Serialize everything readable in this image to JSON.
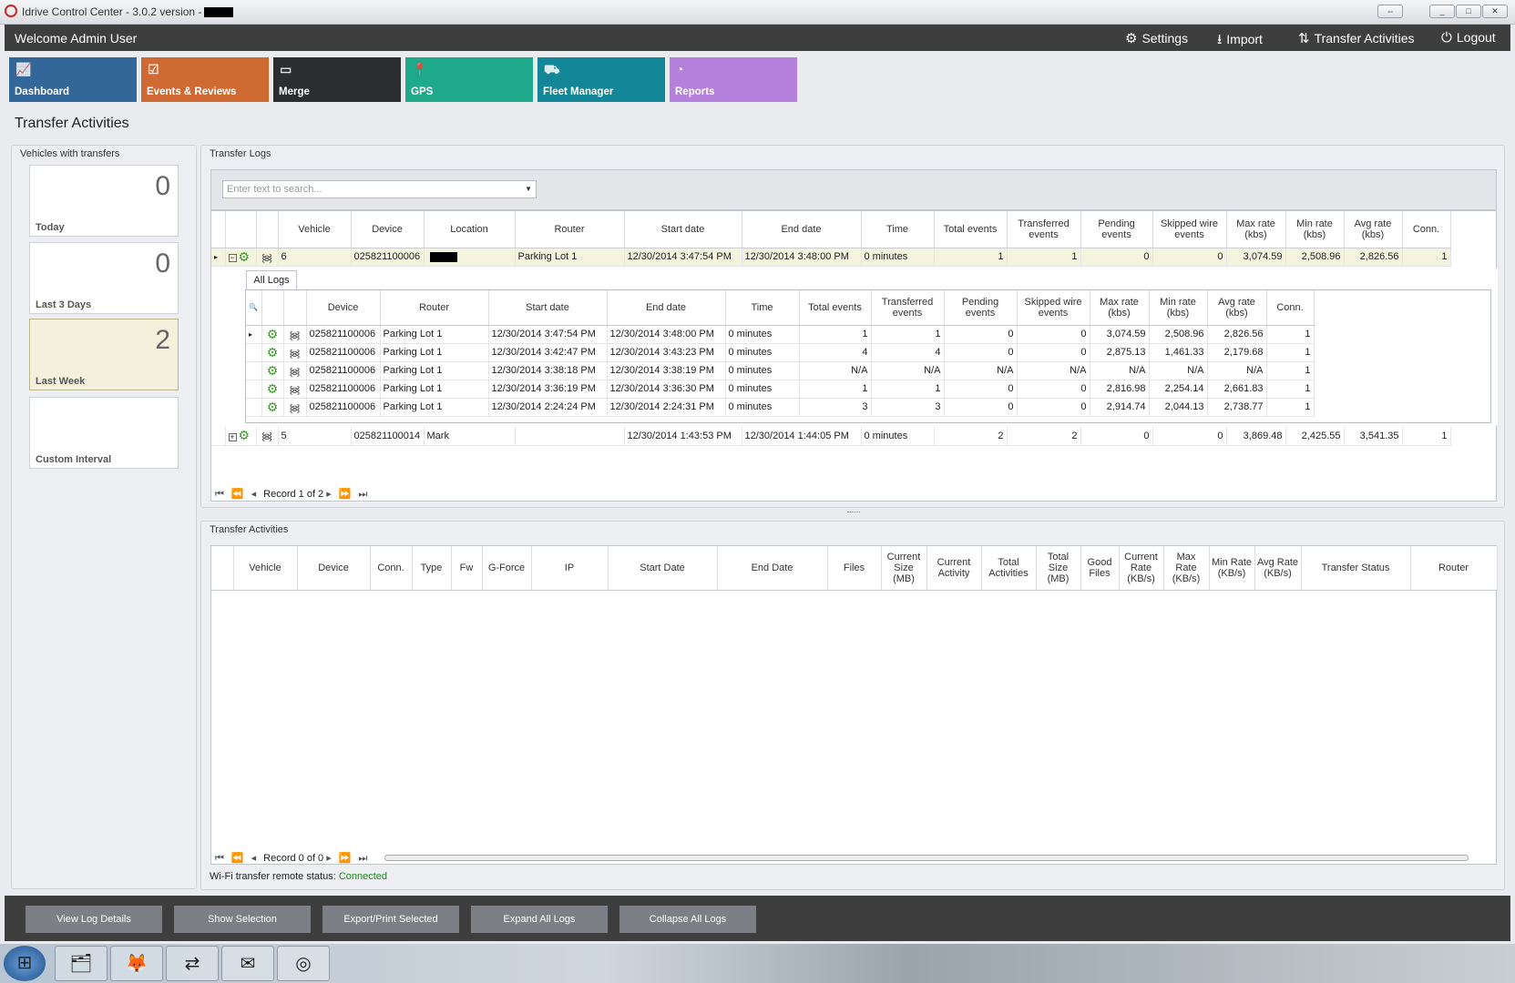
{
  "window": {
    "title": "Idrive Control Center - 3.0.2 version -",
    "controls": [
      "⇔",
      "_",
      "□",
      "✕"
    ]
  },
  "header": {
    "welcome": "Welcome Admin User",
    "nav": [
      {
        "label": "Settings",
        "icon": "gears-icon"
      },
      {
        "label": "Import",
        "icon": "download-icon"
      },
      {
        "label": "Transfer Activities",
        "icon": "transfer-arrows-icon"
      },
      {
        "label": "Logout",
        "icon": "power-icon"
      }
    ]
  },
  "tiles": [
    {
      "label": "Dashboard",
      "icon": "chart-icon",
      "color": "#336699"
    },
    {
      "label": "Events & Reviews",
      "icon": "clipboard-check-icon",
      "color": "#d06a33"
    },
    {
      "label": "Merge",
      "icon": "merge-icon",
      "color": "#2b2d31"
    },
    {
      "label": "GPS",
      "icon": "map-pin-icon",
      "color": "#1ea98a"
    },
    {
      "label": "Fleet Manager",
      "icon": "trucks-icon",
      "color": "#138797"
    },
    {
      "label": "Reports",
      "icon": "pie-chart-icon",
      "color": "#b57fdc"
    }
  ],
  "page_title": "Transfer Activities",
  "vehicles_panel": {
    "title": "Vehicles with transfers",
    "cards": [
      {
        "label": "Today",
        "count": "0"
      },
      {
        "label": "Last 3 Days",
        "count": "0"
      },
      {
        "label": "Last Week",
        "count": "2",
        "selected": true
      },
      {
        "label": "Custom Interval",
        "count": ""
      }
    ]
  },
  "transfer_logs": {
    "title": "Transfer Logs",
    "search_placeholder": "Enter text to search...",
    "columns": [
      "Vehicle",
      "Device",
      "Location",
      "Router",
      "Start date",
      "End date",
      "Time",
      "Total events",
      "Transferred events",
      "Pending events",
      "Skipped wire events",
      "Max rate (kbs)",
      "Min rate (kbs)",
      "Avg rate (kbs)",
      "Conn."
    ],
    "rows": [
      {
        "vehicle": "6",
        "device": "025821100006",
        "location": "[redacted]",
        "router": "Parking Lot 1",
        "start": "12/30/2014 3:47:54 PM",
        "end": "12/30/2014 3:48:00 PM",
        "time": "0 minutes",
        "total": "1",
        "transferred": "1",
        "pending": "0",
        "skipped": "0",
        "max": "3,074.59",
        "min": "2,508.96",
        "avg": "2,826.56",
        "conn": "1",
        "expanded": true
      },
      {
        "vehicle": "5",
        "device": "025821100014",
        "location": "Mark",
        "router": "",
        "start": "12/30/2014 1:43:53 PM",
        "end": "12/30/2014 1:44:05 PM",
        "time": "0 minutes",
        "total": "2",
        "transferred": "2",
        "pending": "0",
        "skipped": "0",
        "max": "3,869.48",
        "min": "2,425.55",
        "avg": "3,541.35",
        "conn": "1",
        "expanded": false
      }
    ],
    "detail": {
      "tab": "All Logs",
      "columns": [
        "Device",
        "Router",
        "Start date",
        "End date",
        "Time",
        "Total events",
        "Transferred events",
        "Pending events",
        "Skipped wire events",
        "Max rate (kbs)",
        "Min rate (kbs)",
        "Avg rate (kbs)",
        "Conn."
      ],
      "rows": [
        [
          "025821100006",
          "Parking Lot 1",
          "12/30/2014 3:47:54 PM",
          "12/30/2014 3:48:00 PM",
          "0 minutes",
          "1",
          "1",
          "0",
          "0",
          "3,074.59",
          "2,508.96",
          "2,826.56",
          "1"
        ],
        [
          "025821100006",
          "Parking Lot 1",
          "12/30/2014 3:42:47 PM",
          "12/30/2014 3:43:23 PM",
          "0 minutes",
          "4",
          "4",
          "0",
          "0",
          "2,875.13",
          "1,461.33",
          "2,179.68",
          "1"
        ],
        [
          "025821100006",
          "Parking Lot 1",
          "12/30/2014 3:38:18 PM",
          "12/30/2014 3:38:19 PM",
          "0 minutes",
          "N/A",
          "N/A",
          "N/A",
          "N/A",
          "N/A",
          "N/A",
          "N/A",
          "1"
        ],
        [
          "025821100006",
          "Parking Lot 1",
          "12/30/2014 3:36:19 PM",
          "12/30/2014 3:36:30 PM",
          "0 minutes",
          "1",
          "1",
          "0",
          "0",
          "2,816.98",
          "2,254.14",
          "2,661.83",
          "1"
        ],
        [
          "025821100006",
          "Parking Lot 1",
          "12/30/2014 2:24:24 PM",
          "12/30/2014 2:24:31 PM",
          "0 minutes",
          "3",
          "3",
          "0",
          "0",
          "2,914.74",
          "2,044.13",
          "2,738.77",
          "1"
        ]
      ]
    },
    "pager": "Record 1 of 2"
  },
  "transfer_activities": {
    "title": "Transfer Activities",
    "columns": [
      "Vehicle",
      "Device",
      "Conn.",
      "Type",
      "Fw",
      "G-Force",
      "IP",
      "Start Date",
      "End Date",
      "Files",
      "Current Size (MB)",
      "Current Activity",
      "Total Activities",
      "Total Size (MB)",
      "Good Files",
      "Current Rate (KB/s)",
      "Max Rate (KB/s)",
      "Min Rate (KB/s)",
      "Avg Rate (KB/s)",
      "Transfer Status",
      "Router"
    ],
    "pager": "Record 0 of 0"
  },
  "status": {
    "label": "Wi-Fi transfer remote status:",
    "value": "Connected",
    "color": "#1a8a1a"
  },
  "footer_buttons": [
    "View Log Details",
    "Show Selection",
    "Export/Print Selected",
    "Expand All Logs",
    "Collapse All Logs"
  ],
  "taskbar": [
    {
      "icon": "windows-start-icon"
    },
    {
      "icon": "file-explorer-icon"
    },
    {
      "icon": "firefox-icon"
    },
    {
      "icon": "teamviewer-icon"
    },
    {
      "icon": "outlook-icon"
    },
    {
      "icon": "idrive-icon"
    }
  ]
}
